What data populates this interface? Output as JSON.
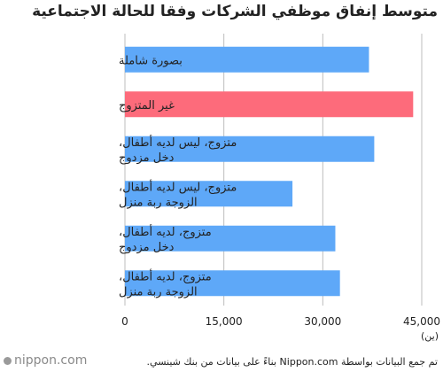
{
  "chart_data": {
    "type": "bar",
    "orientation": "horizontal",
    "title": "متوسط إنفاق موظفي الشركات وفقا للحالة الاجتماعية",
    "categories": [
      [
        "بصورة شاملة"
      ],
      [
        "غير المتزوج"
      ],
      [
        "متزوج، ليس لديه أطفال،",
        "دخل مزدوج"
      ],
      [
        "متزوج، ليس لديه أطفال،",
        "الزوجة ربة منزل"
      ],
      [
        "متزوج، لديه أطفال،",
        "دخل مزدوج"
      ],
      [
        "متزوج، لديه أطفال،",
        "الزوجة ربة منزل"
      ]
    ],
    "values": [
      37000,
      43700,
      37800,
      25400,
      31900,
      32600
    ],
    "colors": [
      "#5ea8f8",
      "#fd6b7b",
      "#5ea8f8",
      "#5ea8f8",
      "#5ea8f8",
      "#5ea8f8"
    ],
    "xticks": [
      "0",
      "15,000",
      "30,000",
      "45,000"
    ],
    "xtick_values": [
      0,
      15000,
      30000,
      45000
    ],
    "xlim": [
      0,
      45000
    ],
    "unit": "(ين)",
    "grid": true
  },
  "source": "تم جمع البيانات بواسطة Nippon.com بناءً على بيانات من بنك شينسي.",
  "logo": "nippon.com"
}
